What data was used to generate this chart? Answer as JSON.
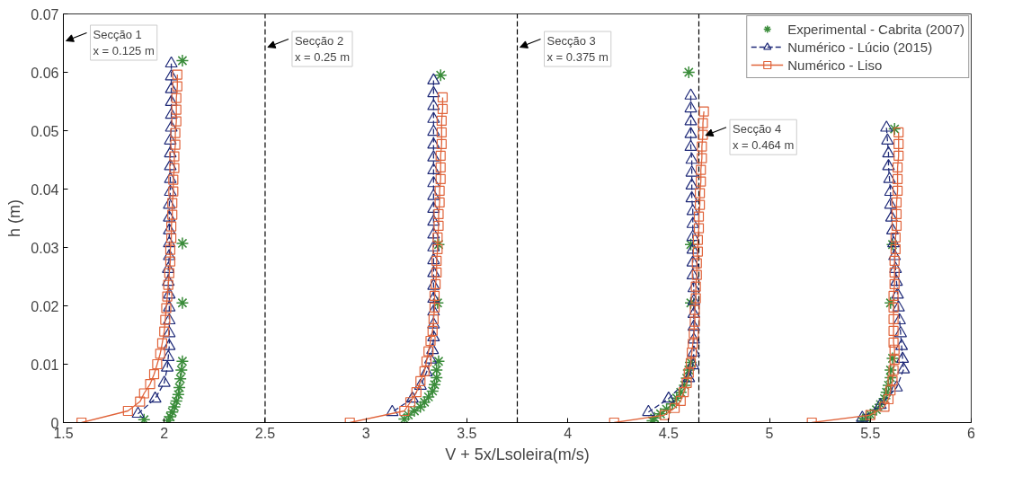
{
  "chart_data": {
    "type": "scatter",
    "xlabel": "V + 5x/Lsoleira(m/s)",
    "ylabel": "h (m)",
    "xlim": [
      1.5,
      6
    ],
    "ylim": [
      0,
      0.07
    ],
    "xticks": [
      1.5,
      2,
      2.5,
      3,
      3.5,
      4,
      4.5,
      5,
      5.5,
      6
    ],
    "yticks": [
      0,
      0.01,
      0.02,
      0.03,
      0.04,
      0.05,
      0.06,
      0.07
    ],
    "grid": false,
    "legend": "top right",
    "series": [
      {
        "name": "Experimental - Cabrita (2007)",
        "marker": "cross",
        "color": "#3a8c3a",
        "x": [
          2.09,
          2.09,
          2.09,
          2.09,
          2.085,
          2.08,
          2.075,
          2.07,
          2.06,
          2.05,
          2.04,
          2.03,
          2.02,
          1.9,
          3.37,
          3.36,
          3.355,
          3.36,
          3.35,
          3.35,
          3.34,
          3.33,
          3.31,
          3.29,
          3.27,
          3.24,
          3.21,
          3.19,
          4.6,
          4.61,
          4.61,
          4.61,
          4.6,
          4.59,
          4.58,
          4.56,
          4.54,
          4.52,
          4.49,
          4.46,
          4.43,
          4.42,
          5.62,
          5.61,
          5.6,
          5.61,
          5.6,
          5.6,
          5.59,
          5.58,
          5.57,
          5.55,
          5.53,
          5.5,
          5.48,
          5.46
        ],
        "values": [
          0.062,
          0.0307,
          0.0205,
          0.0105,
          0.009,
          0.0075,
          0.006,
          0.0048,
          0.0037,
          0.0027,
          0.0018,
          0.001,
          0.0004,
          0.0005,
          0.0595,
          0.0305,
          0.0205,
          0.0105,
          0.009,
          0.0077,
          0.0065,
          0.0054,
          0.0044,
          0.0035,
          0.0027,
          0.002,
          0.0013,
          0.0006,
          0.06,
          0.0305,
          0.0205,
          0.0103,
          0.009,
          0.0076,
          0.0064,
          0.0052,
          0.0042,
          0.0032,
          0.0023,
          0.0015,
          0.0008,
          0.0003,
          0.0503,
          0.0305,
          0.0205,
          0.011,
          0.009,
          0.0077,
          0.0064,
          0.0052,
          0.0041,
          0.0031,
          0.0022,
          0.0014,
          0.0008,
          0.0003
        ]
      },
      {
        "name": "Numérico - Lúcio (2015)",
        "type": "line",
        "marker": "triangle",
        "line_style": "dashed",
        "color": "#1f2a78",
        "x": [
          2.035,
          2.035,
          2.035,
          2.035,
          2.035,
          2.035,
          2.03,
          2.03,
          2.03,
          2.03,
          2.03,
          2.025,
          2.025,
          2.025,
          2.025,
          2.025,
          2.02,
          2.02,
          2.025,
          2.025,
          2.025,
          2.025,
          2.025,
          2.02,
          2.015,
          2.0,
          1.955,
          1.87,
          null,
          3.335,
          3.335,
          3.335,
          3.335,
          3.335,
          3.335,
          3.335,
          3.335,
          3.335,
          3.335,
          3.335,
          3.335,
          3.335,
          3.335,
          3.335,
          3.335,
          3.335,
          3.335,
          3.335,
          3.335,
          3.335,
          3.33,
          3.32,
          3.3,
          3.27,
          3.23,
          3.13,
          null,
          4.61,
          4.61,
          4.61,
          4.61,
          4.61,
          4.615,
          4.615,
          4.615,
          4.615,
          4.62,
          4.62,
          4.62,
          4.62,
          4.62,
          4.62,
          4.625,
          4.625,
          4.625,
          4.625,
          4.625,
          4.625,
          4.62,
          4.6,
          4.5,
          4.4,
          null,
          5.58,
          5.585,
          5.59,
          5.59,
          5.595,
          5.6,
          5.6,
          5.605,
          5.61,
          5.615,
          5.62,
          5.625,
          5.63,
          5.635,
          5.64,
          5.645,
          5.65,
          5.655,
          5.66,
          5.665,
          5.63,
          5.55,
          5.46
        ],
        "values": [
          0.0615,
          0.0593,
          0.0571,
          0.0549,
          0.0527,
          0.0505,
          0.0483,
          0.0461,
          0.0439,
          0.0417,
          0.0395,
          0.0373,
          0.0351,
          0.0329,
          0.0307,
          0.0285,
          0.0263,
          0.0241,
          0.0219,
          0.0197,
          0.0175,
          0.0153,
          0.0131,
          0.0112,
          0.0094,
          0.0068,
          0.0041,
          0.0015,
          null,
          0.0586,
          0.0564,
          0.0542,
          0.052,
          0.0498,
          0.0476,
          0.0454,
          0.0432,
          0.041,
          0.0388,
          0.0366,
          0.0344,
          0.0322,
          0.03,
          0.0278,
          0.0256,
          0.0234,
          0.0212,
          0.019,
          0.0168,
          0.0146,
          0.0124,
          0.0108,
          0.0086,
          0.0063,
          0.0041,
          0.0018,
          null,
          0.056,
          0.0538,
          0.0516,
          0.0494,
          0.0472,
          0.045,
          0.0428,
          0.0406,
          0.0384,
          0.0362,
          0.034,
          0.0318,
          0.0296,
          0.0274,
          0.0252,
          0.023,
          0.0208,
          0.0186,
          0.0164,
          0.0142,
          0.012,
          0.0098,
          0.0076,
          0.0041,
          0.0018,
          null,
          0.0505,
          0.0483,
          0.0461,
          0.0439,
          0.0417,
          0.0395,
          0.0373,
          0.0351,
          0.0329,
          0.0307,
          0.0285,
          0.0263,
          0.0241,
          0.0219,
          0.0197,
          0.0175,
          0.0153,
          0.0131,
          0.0109,
          0.0091,
          0.006,
          0.003,
          0.0008
        ]
      },
      {
        "name": "Numérico - Liso",
        "type": "line",
        "marker": "square",
        "line_style": "solid",
        "color": "#e0633a",
        "x": [
          2.065,
          2.065,
          2.06,
          2.06,
          2.06,
          2.055,
          2.055,
          2.05,
          2.05,
          2.045,
          2.045,
          2.04,
          2.04,
          2.035,
          2.035,
          2.03,
          2.03,
          2.025,
          2.02,
          2.015,
          2.01,
          2.005,
          2.0,
          1.99,
          1.98,
          1.965,
          1.95,
          1.93,
          1.9,
          1.88,
          1.82,
          1.59,
          null,
          3.38,
          3.38,
          3.375,
          3.375,
          3.375,
          3.37,
          3.37,
          3.37,
          3.365,
          3.365,
          3.36,
          3.36,
          3.355,
          3.355,
          3.35,
          3.35,
          3.345,
          3.34,
          3.34,
          3.335,
          3.33,
          3.32,
          3.31,
          3.3,
          3.29,
          3.27,
          3.25,
          3.22,
          3.19,
          2.92,
          null,
          4.675,
          4.67,
          4.67,
          4.665,
          4.665,
          4.66,
          4.66,
          4.655,
          4.655,
          4.65,
          4.65,
          4.645,
          4.645,
          4.64,
          4.64,
          4.635,
          4.635,
          4.63,
          4.63,
          4.625,
          4.62,
          4.615,
          4.61,
          4.6,
          4.59,
          4.575,
          4.56,
          4.53,
          4.48,
          4.23,
          null,
          5.64,
          5.64,
          5.64,
          5.635,
          5.635,
          5.635,
          5.63,
          5.63,
          5.63,
          5.625,
          5.625,
          5.62,
          5.62,
          5.62,
          5.615,
          5.615,
          5.615,
          5.615,
          5.615,
          5.62,
          5.62,
          5.615,
          5.61,
          5.6,
          5.59,
          5.57,
          5.5,
          5.21
        ],
        "values": [
          0.0596,
          0.0576,
          0.0556,
          0.0536,
          0.0516,
          0.0496,
          0.0476,
          0.0456,
          0.0436,
          0.0416,
          0.0396,
          0.0376,
          0.0356,
          0.0336,
          0.0316,
          0.0296,
          0.0276,
          0.0256,
          0.0236,
          0.0216,
          0.0196,
          0.0176,
          0.0156,
          0.0136,
          0.0118,
          0.01,
          0.0083,
          0.0066,
          0.005,
          0.0036,
          0.002,
          0,
          null,
          0.0557,
          0.0537,
          0.0517,
          0.0497,
          0.0477,
          0.0457,
          0.0437,
          0.0417,
          0.0397,
          0.0377,
          0.0357,
          0.0337,
          0.0317,
          0.0297,
          0.0277,
          0.0257,
          0.0237,
          0.0217,
          0.0197,
          0.0177,
          0.0157,
          0.014,
          0.0122,
          0.0105,
          0.0088,
          0.0071,
          0.0052,
          0.0035,
          0.002,
          0,
          null,
          0.0533,
          0.0513,
          0.0493,
          0.0473,
          0.0453,
          0.0433,
          0.0413,
          0.0393,
          0.0373,
          0.0353,
          0.0333,
          0.0313,
          0.0293,
          0.0273,
          0.0253,
          0.0233,
          0.0213,
          0.0193,
          0.0173,
          0.0153,
          0.0135,
          0.012,
          0.0102,
          0.0085,
          0.0068,
          0.0052,
          0.0037,
          0.0025,
          0.0013,
          0,
          null,
          0.0497,
          0.0477,
          0.0457,
          0.0437,
          0.0417,
          0.0397,
          0.0377,
          0.0357,
          0.0337,
          0.0317,
          0.0297,
          0.0277,
          0.0257,
          0.0237,
          0.0217,
          0.0197,
          0.0177,
          0.0157,
          0.0137,
          0.0125,
          0.0108,
          0.009,
          0.0072,
          0.0055,
          0.004,
          0.0027,
          0.0013,
          0
        ]
      }
    ],
    "ref_lines": [
      {
        "axis": "x",
        "value": 2.5,
        "color": "#000000",
        "line_style": "dashed"
      },
      {
        "axis": "x",
        "value": 3.75,
        "color": "#000000",
        "line_style": "dashed"
      },
      {
        "axis": "x",
        "value": 4.65,
        "color": "#000000",
        "line_style": "dashed"
      }
    ],
    "annotations": [
      "Secção 1\nx = 0.125 m",
      {
        "text": "Secção 2\nx = 0.25 m",
        "x": 2.5,
        "y": 0.0643
      },
      {
        "text": "Secção 3\nx = 0.375 m",
        "x": 3.75,
        "y": 0.0643
      },
      {
        "text": "Secção 4\nx = 0.464 m",
        "x": 4.67,
        "y": 0.0492
      }
    ]
  }
}
